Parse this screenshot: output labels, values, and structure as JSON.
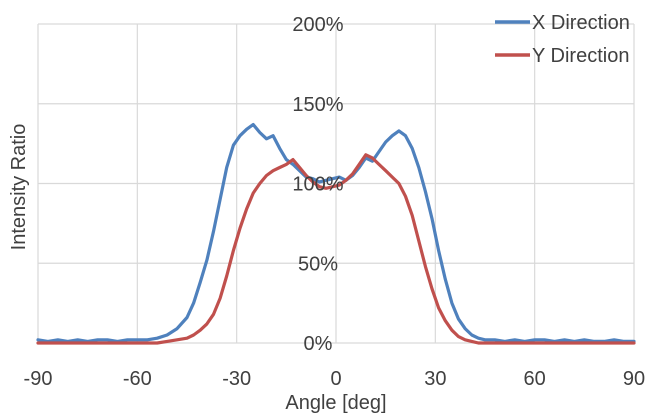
{
  "chart_data": {
    "type": "line",
    "xlabel": "Angle [deg]",
    "ylabel": "Intensity Ratio",
    "xlim": [
      -90,
      90
    ],
    "ylim": [
      0,
      200
    ],
    "x_ticks": [
      -90,
      -60,
      -30,
      0,
      30,
      60,
      90
    ],
    "x_tick_labels": [
      "-90",
      "-60",
      "-30",
      "0",
      "30",
      "60",
      "90"
    ],
    "y_ticks": [
      0,
      50,
      100,
      150,
      200
    ],
    "y_tick_labels": [
      "0%",
      "50%",
      "100%",
      "150%",
      "200%"
    ],
    "grid": true,
    "legend_position": "top-right",
    "series": [
      {
        "name": "X Direction",
        "color": "#4f81bd",
        "x": [
          -90,
          -87,
          -84,
          -81,
          -78,
          -75,
          -72,
          -69,
          -66,
          -63,
          -60,
          -57,
          -54,
          -51,
          -48,
          -45,
          -43,
          -41,
          -39,
          -37,
          -35,
          -33,
          -31,
          -29,
          -27,
          -25,
          -23,
          -21,
          -19,
          -17,
          -15,
          -13,
          -11,
          -9,
          -7,
          -5,
          -3,
          -1,
          1,
          3,
          5,
          7,
          9,
          11,
          13,
          15,
          17,
          19,
          21,
          23,
          25,
          27,
          29,
          31,
          33,
          35,
          37,
          39,
          41,
          43,
          45,
          48,
          51,
          54,
          57,
          60,
          63,
          66,
          69,
          72,
          75,
          78,
          81,
          84,
          87,
          90
        ],
        "y": [
          2,
          1,
          2,
          1,
          2,
          1,
          2,
          2,
          1,
          2,
          2,
          2,
          3,
          5,
          9,
          16,
          25,
          38,
          52,
          70,
          90,
          110,
          124,
          130,
          134,
          137,
          132,
          128,
          130,
          122,
          115,
          112,
          108,
          104,
          103,
          101,
          102,
          103,
          104,
          102,
          105,
          110,
          116,
          114,
          120,
          126,
          130,
          133,
          130,
          122,
          110,
          95,
          78,
          58,
          40,
          25,
          15,
          9,
          5,
          3,
          2,
          2,
          1,
          2,
          1,
          2,
          2,
          1,
          2,
          1,
          2,
          1,
          1,
          2,
          1,
          1
        ]
      },
      {
        "name": "Y Direction",
        "color": "#c0504d",
        "x": [
          -90,
          -87,
          -84,
          -81,
          -78,
          -75,
          -72,
          -69,
          -66,
          -63,
          -60,
          -57,
          -54,
          -51,
          -48,
          -45,
          -43,
          -41,
          -39,
          -37,
          -35,
          -33,
          -31,
          -29,
          -27,
          -25,
          -23,
          -21,
          -19,
          -17,
          -15,
          -13,
          -11,
          -9,
          -7,
          -5,
          -3,
          -1,
          1,
          3,
          5,
          7,
          9,
          11,
          13,
          15,
          17,
          19,
          21,
          23,
          25,
          27,
          29,
          31,
          33,
          35,
          37,
          39,
          41,
          43,
          45,
          48,
          51,
          54,
          57,
          60,
          63,
          66,
          69,
          72,
          75,
          78,
          81,
          84,
          87,
          90
        ],
        "y": [
          0,
          0,
          0,
          0,
          0,
          0,
          0,
          0,
          0,
          0,
          0,
          0,
          0,
          1,
          2,
          3,
          5,
          8,
          12,
          18,
          28,
          42,
          58,
          72,
          84,
          94,
          100,
          105,
          108,
          110,
          112,
          115,
          110,
          105,
          101,
          98,
          97,
          98,
          99,
          102,
          106,
          112,
          118,
          116,
          112,
          108,
          104,
          100,
          92,
          80,
          64,
          48,
          34,
          22,
          14,
          8,
          4,
          2,
          1,
          0,
          0,
          0,
          0,
          0,
          0,
          0,
          0,
          0,
          0,
          0,
          0,
          0,
          0,
          0,
          0,
          0
        ]
      }
    ]
  }
}
